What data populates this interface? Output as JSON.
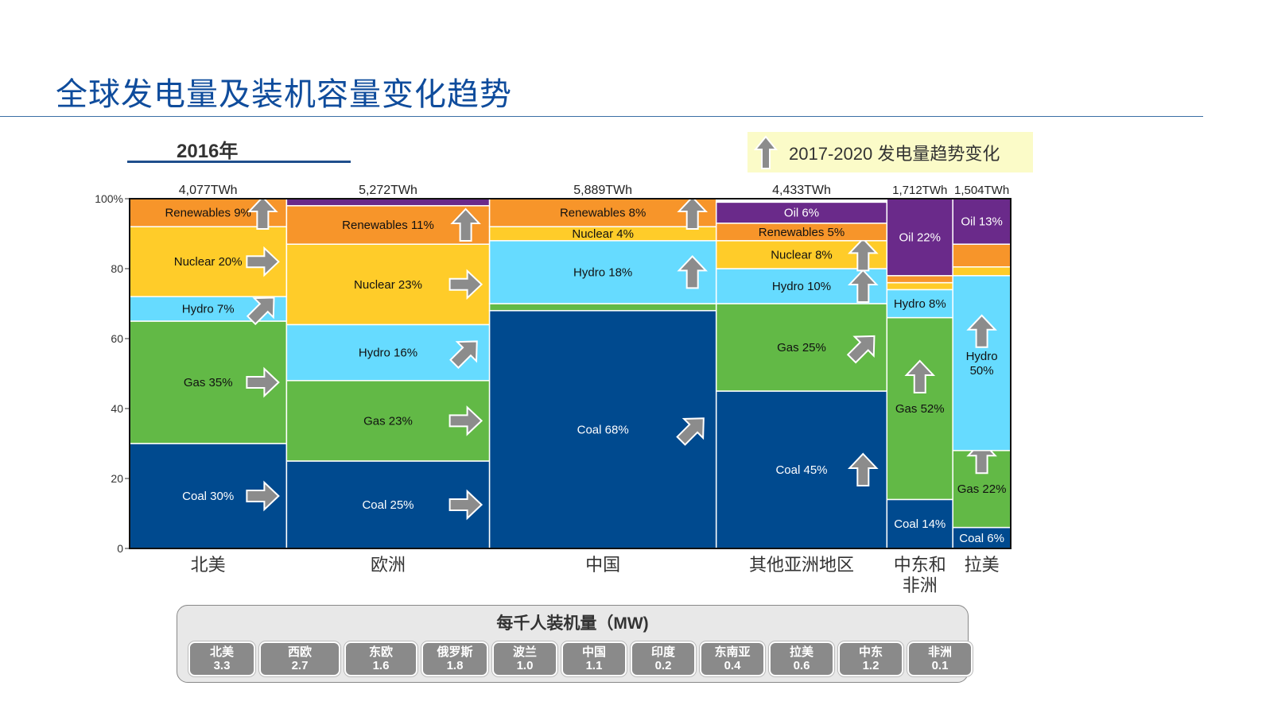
{
  "title": "全球发电量及装机容量变化趋势",
  "year_label": "2016年",
  "legend": {
    "text": "2017-2020  发电量趋势变化",
    "icon": "up-arrow-icon"
  },
  "colors": {
    "Coal": "#004a8f",
    "Gas": "#62b946",
    "Hydro": "#66dbff",
    "Nuclear": "#ffcc29",
    "Renewables": "#f7952a",
    "Oil": "#6a2a8a",
    "arrow": "#8c8c8c"
  },
  "chart_data": {
    "type": "marimekko",
    "ylabel": "",
    "ylim": [
      0,
      100
    ],
    "yticks": [
      "0",
      "20",
      "40",
      "60",
      "80",
      "100%"
    ],
    "columns": [
      {
        "region": "北美",
        "total": "4,077TWh",
        "twh": 4077,
        "segments": [
          {
            "name": "Coal",
            "value": 30,
            "label": "Coal 30%",
            "trend": "right"
          },
          {
            "name": "Gas",
            "value": 35,
            "label": "Gas 35%",
            "trend": "right"
          },
          {
            "name": "Hydro",
            "value": 7,
            "label": "Hydro 7%",
            "trend": "diag"
          },
          {
            "name": "Nuclear",
            "value": 20,
            "label": "Nuclear 20%",
            "trend": "right"
          },
          {
            "name": "Renewables",
            "value": 9,
            "label": "Renewables 9%",
            "trend": "up"
          },
          {
            "name": "Oil",
            "value": 0.5,
            "label": "",
            "trend": ""
          }
        ]
      },
      {
        "region": "欧洲",
        "total": "5,272TWh",
        "twh": 5272,
        "segments": [
          {
            "name": "Coal",
            "value": 25,
            "label": "Coal 25%",
            "trend": "right"
          },
          {
            "name": "Gas",
            "value": 23,
            "label": "Gas 23%",
            "trend": "right"
          },
          {
            "name": "Hydro",
            "value": 16,
            "label": "Hydro 16%",
            "trend": "diag"
          },
          {
            "name": "Nuclear",
            "value": 23,
            "label": "Nuclear 23%",
            "trend": "right"
          },
          {
            "name": "Renewables",
            "value": 11,
            "label": "Renewables 11%",
            "trend": "up"
          },
          {
            "name": "Oil",
            "value": 2,
            "label": "",
            "trend": ""
          }
        ]
      },
      {
        "region": "中国",
        "total": "5,889TWh",
        "twh": 5889,
        "segments": [
          {
            "name": "Coal",
            "value": 68,
            "label": "Coal 68%",
            "trend": "diag"
          },
          {
            "name": "Gas",
            "value": 2,
            "label": "",
            "trend": ""
          },
          {
            "name": "Hydro",
            "value": 18,
            "label": "Hydro 18%",
            "trend": "up"
          },
          {
            "name": "Nuclear",
            "value": 4,
            "label": "Nuclear 4%",
            "trend": ""
          },
          {
            "name": "Renewables",
            "value": 8,
            "label": "Renewables 8%",
            "trend": "up"
          }
        ]
      },
      {
        "region": "其他亚洲地区",
        "total": "4,433TWh",
        "twh": 4433,
        "segments": [
          {
            "name": "Coal",
            "value": 45,
            "label": "Coal 45%",
            "trend": "up"
          },
          {
            "name": "Gas",
            "value": 25,
            "label": "Gas 25%",
            "trend": "diag"
          },
          {
            "name": "Hydro",
            "value": 10,
            "label": "Hydro 10%",
            "trend": "up"
          },
          {
            "name": "Nuclear",
            "value": 8,
            "label": "Nuclear 8%",
            "trend": "up"
          },
          {
            "name": "Renewables",
            "value": 5,
            "label": "Renewables 5%",
            "trend": ""
          },
          {
            "name": "Oil",
            "value": 6,
            "label": "Oil 6%",
            "trend": ""
          }
        ]
      },
      {
        "region": "中东和\n非洲",
        "total": "1,712TWh",
        "twh": 1712,
        "segments": [
          {
            "name": "Coal",
            "value": 14,
            "label": "Coal 14%",
            "trend": ""
          },
          {
            "name": "Gas",
            "value": 52,
            "label": "Gas 52%",
            "trend": "up"
          },
          {
            "name": "Hydro",
            "value": 8,
            "label": "Hydro 8%",
            "trend": ""
          },
          {
            "name": "Nuclear",
            "value": 2,
            "label": "",
            "trend": ""
          },
          {
            "name": "Renewables",
            "value": 2,
            "label": "",
            "trend": ""
          },
          {
            "name": "Oil",
            "value": 22,
            "label": "Oil 22%",
            "trend": ""
          }
        ]
      },
      {
        "region": "拉美",
        "total": "1,504TWh",
        "twh": 1504,
        "segments": [
          {
            "name": "Coal",
            "value": 6,
            "label": "Coal 6%",
            "trend": ""
          },
          {
            "name": "Gas",
            "value": 22,
            "label": "Gas 22%",
            "trend": "up"
          },
          {
            "name": "Hydro",
            "value": 50,
            "label": "Hydro\n50%",
            "trend": "up"
          },
          {
            "name": "Nuclear",
            "value": 2.5,
            "label": "",
            "trend": ""
          },
          {
            "name": "Renewables",
            "value": 6.5,
            "label": "",
            "trend": ""
          },
          {
            "name": "Oil",
            "value": 13,
            "label": "Oil 13%",
            "trend": ""
          }
        ]
      }
    ]
  },
  "per_capita": {
    "title": "每千人装机量（MW)",
    "items": [
      {
        "region": "北美",
        "value": "3.3"
      },
      {
        "region": "西欧",
        "value": "2.7"
      },
      {
        "region": "东欧",
        "value": "1.6"
      },
      {
        "region": "俄罗斯",
        "value": "1.8"
      },
      {
        "region": "波兰",
        "value": "1.0"
      },
      {
        "region": "中国",
        "value": "1.1"
      },
      {
        "region": "印度",
        "value": "0.2"
      },
      {
        "region": "东南亚",
        "value": "0.4"
      },
      {
        "region": "拉美",
        "value": "0.6"
      },
      {
        "region": "中东",
        "value": "1.2"
      },
      {
        "region": "非洲",
        "value": "0.1"
      }
    ]
  }
}
